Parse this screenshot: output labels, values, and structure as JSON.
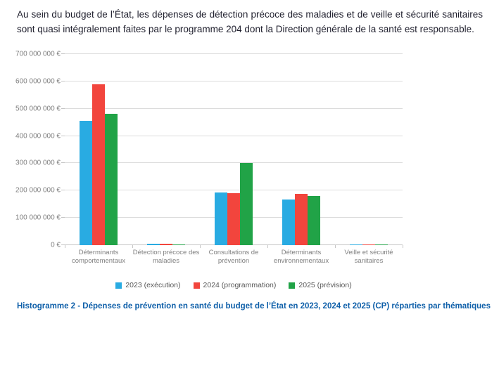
{
  "paragraph": "Au sein du budget de l’État, les dépenses de détection précoce des maladies et de veille et sécurité sanitaires sont quasi intégralement faites par le programme 204 dont la Direction générale de la santé est responsable.",
  "caption": "Histogramme 2 - Dépenses de prévention en santé du budget de l’État en 2023, 2024 et 2025 (CP) réparties par thématiques",
  "chart_data": {
    "type": "bar",
    "title": "",
    "xlabel": "",
    "ylabel": "",
    "grid": true,
    "legend_position": "bottom",
    "ylim": [
      0,
      700000000
    ],
    "y_ticks": [
      "0 €",
      "100 000 000 €",
      "200 000 000 €",
      "300 000 000 €",
      "400 000 000 €",
      "500 000 000 €",
      "600 000 000 €",
      "700 000 000 €"
    ],
    "categories": [
      "Déterminants comportementaux",
      "Détection précoce des maladies",
      "Consultations de prévention",
      "Déterminants environnementaux",
      "Veille et sécurité sanitaires"
    ],
    "x_tick_labels": [
      [
        "Déterminants",
        "comportementaux"
      ],
      [
        "Détection précoce des",
        "maladies"
      ],
      [
        "Consultations de",
        "prévention"
      ],
      [
        "Déterminants",
        "environnementaux"
      ],
      [
        "Veille et sécurité",
        "sanitaires"
      ]
    ],
    "series": [
      {
        "name": "2023 (exécution)",
        "color": "#29abe2",
        "values": [
          455000000,
          6000000,
          192000000,
          168000000,
          2500000
        ]
      },
      {
        "name": "2024 (programmation)",
        "color": "#f2453d",
        "values": [
          590000000,
          5000000,
          190000000,
          188000000,
          2000000
        ]
      },
      {
        "name": "2025 (prévision)",
        "color": "#21a347",
        "values": [
          481000000,
          1500000,
          302000000,
          180000000,
          2500000
        ]
      }
    ],
    "colors": {
      "gridline": "#dcdcdc",
      "axis_text": "#7f7f7f",
      "legend_text": "#595959",
      "caption_blue": "#0e5fa9"
    }
  }
}
